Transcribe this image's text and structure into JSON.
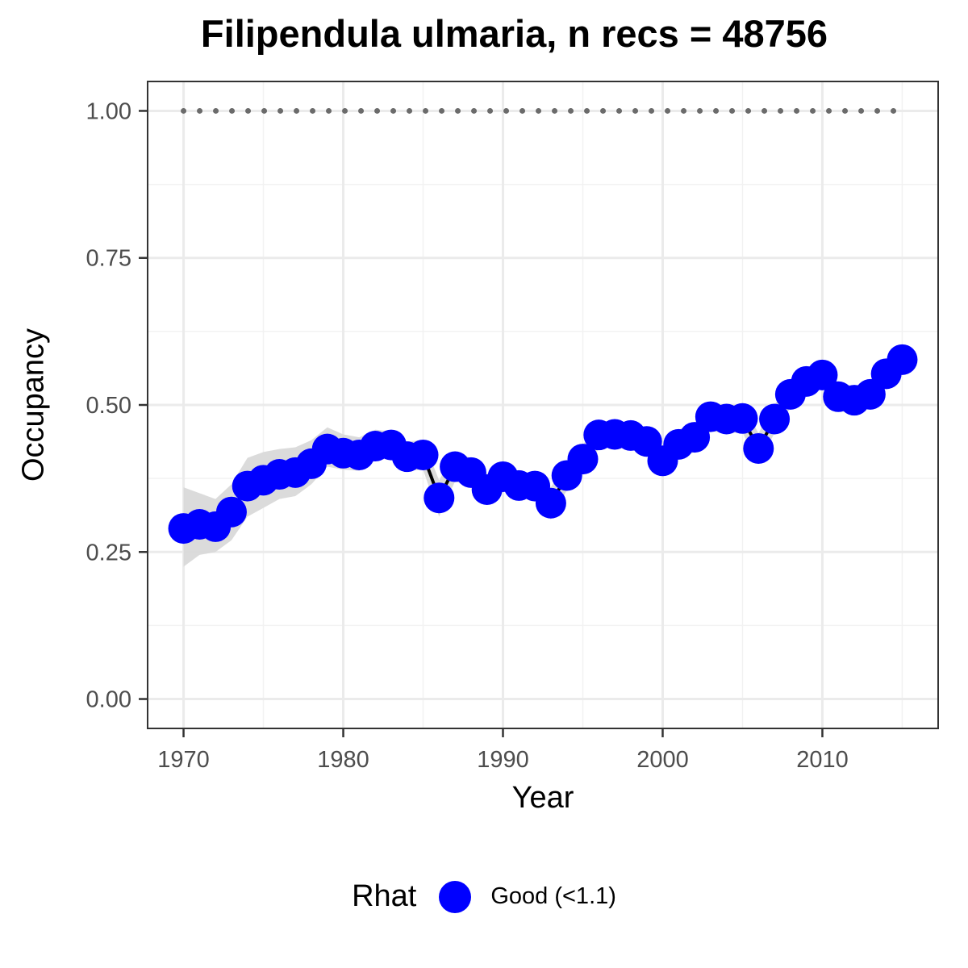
{
  "chart_data": {
    "type": "line",
    "title": "Filipendula ulmaria, n recs = 48756",
    "xlabel": "Year",
    "ylabel": "Occupancy",
    "xlim": [
      1967.75,
      2017.25
    ],
    "ylim": [
      -0.05,
      1.05
    ],
    "x_ticks": [
      1970,
      1980,
      1990,
      2000,
      2010
    ],
    "x_tick_labels": [
      "1970",
      "1980",
      "1990",
      "2000",
      "2010"
    ],
    "y_ticks": [
      0,
      0.25,
      0.5,
      0.75,
      1
    ],
    "y_tick_labels": [
      "0.00",
      "0.25",
      "0.50",
      "0.75",
      "1.00"
    ],
    "grid": true,
    "legend": {
      "title": "Rhat",
      "position": "bottom",
      "entries": [
        {
          "label": "Good (<1.1)",
          "color": "#0000ff"
        }
      ]
    },
    "colors": {
      "points": "#0000ff",
      "line": "#000000",
      "ribbon": "#d9d9d9",
      "reference": "#6b6b6b"
    },
    "x": [
      1970,
      1971,
      1972,
      1973,
      1974,
      1975,
      1976,
      1977,
      1978,
      1979,
      1980,
      1981,
      1982,
      1983,
      1984,
      1985,
      1986,
      1987,
      1988,
      1989,
      1990,
      1991,
      1992,
      1993,
      1994,
      1995,
      1996,
      1997,
      1998,
      1999,
      2000,
      2001,
      2002,
      2003,
      2004,
      2005,
      2006,
      2007,
      2008,
      2009,
      2010,
      2011,
      2012,
      2013,
      2014,
      2015
    ],
    "series": [
      {
        "values": [
          0.29,
          0.297,
          0.293,
          0.318,
          0.362,
          0.372,
          0.382,
          0.385,
          0.4,
          0.425,
          0.418,
          0.415,
          0.43,
          0.432,
          0.412,
          0.415,
          0.342,
          0.395,
          0.385,
          0.356,
          0.378,
          0.363,
          0.362,
          0.333,
          0.38,
          0.408,
          0.449,
          0.45,
          0.448,
          0.438,
          0.405,
          0.433,
          0.445,
          0.48,
          0.476,
          0.477,
          0.426,
          0.476,
          0.518,
          0.54,
          0.551,
          0.514,
          0.508,
          0.518,
          0.553,
          0.577
        ],
        "lower": [
          0.225,
          0.245,
          0.25,
          0.27,
          0.31,
          0.325,
          0.34,
          0.345,
          0.365,
          0.395,
          0.39,
          0.388,
          0.405,
          0.41,
          0.388,
          0.39,
          0.31,
          0.37,
          0.36,
          0.33,
          0.355,
          0.34,
          0.34,
          0.305,
          0.355,
          0.385,
          0.425,
          0.428,
          0.425,
          0.415,
          0.38,
          0.408,
          0.42,
          0.455,
          0.452,
          0.453,
          0.4,
          0.452,
          0.495,
          0.518,
          0.53,
          0.49,
          0.485,
          0.495,
          0.53,
          0.553
        ],
        "upper": [
          0.36,
          0.35,
          0.34,
          0.365,
          0.41,
          0.42,
          0.425,
          0.428,
          0.44,
          0.462,
          0.45,
          0.445,
          0.458,
          0.455,
          0.438,
          0.44,
          0.372,
          0.42,
          0.41,
          0.383,
          0.402,
          0.386,
          0.385,
          0.36,
          0.405,
          0.432,
          0.472,
          0.473,
          0.47,
          0.46,
          0.43,
          0.458,
          0.47,
          0.505,
          0.5,
          0.501,
          0.452,
          0.5,
          0.542,
          0.563,
          0.573,
          0.538,
          0.532,
          0.542,
          0.577,
          0.6
        ]
      }
    ],
    "reference_line": {
      "y": 1.0
    }
  }
}
